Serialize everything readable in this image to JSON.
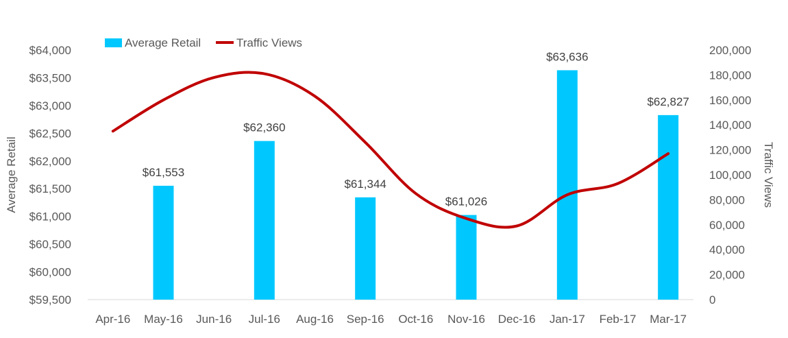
{
  "chart_data": {
    "type": "bar",
    "categories": [
      "Apr-16",
      "May-16",
      "Jun-16",
      "Jul-16",
      "Aug-16",
      "Sep-16",
      "Oct-16",
      "Nov-16",
      "Dec-16",
      "Jan-17",
      "Feb-17",
      "Mar-17"
    ],
    "series": [
      {
        "name": "Average Retail",
        "type": "bar",
        "axis": "left",
        "color": "#00C8FF",
        "values": [
          null,
          61553,
          null,
          62360,
          null,
          61344,
          null,
          61026,
          null,
          63636,
          null,
          62827
        ],
        "labels": [
          "",
          "$61,553",
          "",
          "$62,360",
          "",
          "$61,344",
          "",
          "$61,026",
          "",
          "$63,636",
          "",
          "$62,827"
        ]
      },
      {
        "name": "Traffic Views",
        "type": "line",
        "axis": "right",
        "color": "#C00000",
        "values": [
          135000,
          160000,
          178000,
          181000,
          163000,
          126000,
          85000,
          65000,
          59000,
          84000,
          93000,
          117000
        ]
      }
    ],
    "xlabel": "",
    "ylabel": "Average Retail",
    "y2label": "Traffic Views",
    "ylim": [
      59500,
      64000
    ],
    "y2lim": [
      0,
      200000
    ],
    "yticks": [
      "$59,500",
      "$60,000",
      "$60,500",
      "$61,000",
      "$61,500",
      "$62,000",
      "$62,500",
      "$63,000",
      "$63,500",
      "$64,000"
    ],
    "y2ticks": [
      "0",
      "20,000",
      "40,000",
      "60,000",
      "80,000",
      "100,000",
      "120,000",
      "140,000",
      "160,000",
      "180,000",
      "200,000"
    ],
    "grid": false,
    "legend": "top-left"
  }
}
